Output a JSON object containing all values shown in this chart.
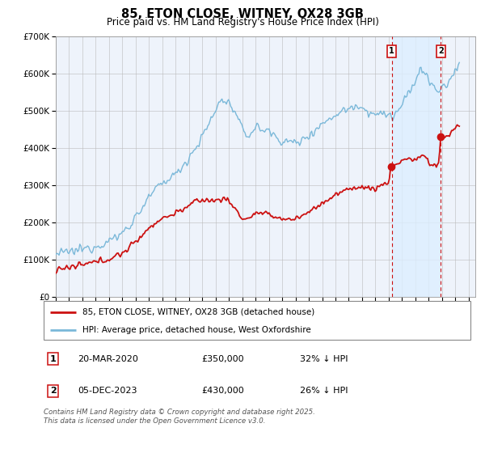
{
  "title": "85, ETON CLOSE, WITNEY, OX28 3GB",
  "subtitle": "Price paid vs. HM Land Registry's House Price Index (HPI)",
  "legend_line1": "85, ETON CLOSE, WITNEY, OX28 3GB (detached house)",
  "legend_line2": "HPI: Average price, detached house, West Oxfordshire",
  "annotation1_date": "20-MAR-2020",
  "annotation1_price": "£350,000",
  "annotation1_hpi": "32% ↓ HPI",
  "annotation2_date": "05-DEC-2023",
  "annotation2_price": "£430,000",
  "annotation2_hpi": "26% ↓ HPI",
  "footer": "Contains HM Land Registry data © Crown copyright and database right 2025.\nThis data is licensed under the Open Government Licence v3.0.",
  "hpi_color": "#7ab8d9",
  "price_color": "#cc1111",
  "annotation_color": "#cc1111",
  "vline_color": "#cc1111",
  "shade_color": "#ddeeff",
  "ylim": [
    0,
    700000
  ],
  "yticks": [
    0,
    100000,
    200000,
    300000,
    400000,
    500000,
    600000,
    700000
  ],
  "xlim_start": 1995.0,
  "xlim_end": 2026.5,
  "sale1_x": 2020.22,
  "sale1_y": 350000,
  "sale2_x": 2023.92,
  "sale2_y": 430000
}
